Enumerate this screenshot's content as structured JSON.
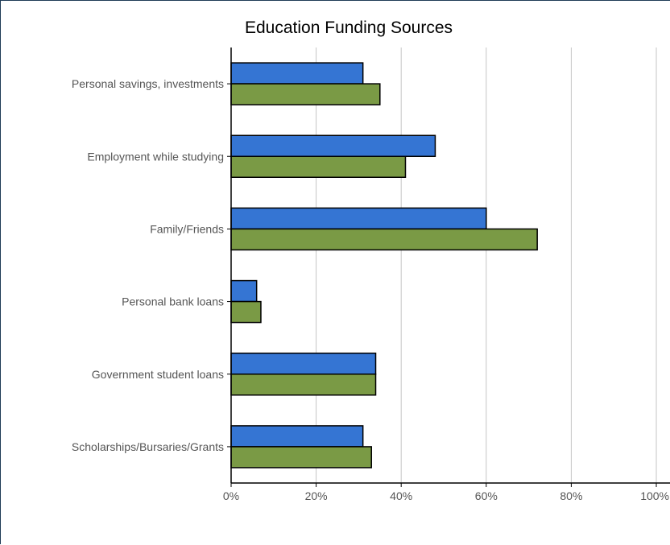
{
  "chart_data": {
    "type": "bar",
    "orientation": "horizontal",
    "title": "Education Funding Sources",
    "xlabel": "",
    "ylabel": "",
    "xlim": [
      0,
      100
    ],
    "x_ticks": [
      "0%",
      "20%",
      "40%",
      "60%",
      "80%",
      "100%"
    ],
    "x_tick_values": [
      0,
      20,
      40,
      60,
      80,
      100
    ],
    "grid": "vertical",
    "legend": "none",
    "categories": [
      "Personal savings, investments",
      "Employment while studying",
      "Family/Friends",
      "Personal bank loans",
      "Government student loans",
      "Scholarships/Bursaries/Grants"
    ],
    "series": [
      {
        "color": "#3575d3",
        "values": [
          31,
          48,
          60,
          6,
          34,
          31
        ]
      },
      {
        "color": "#7a9a45",
        "values": [
          35,
          41,
          72,
          7,
          34,
          33
        ]
      }
    ]
  }
}
